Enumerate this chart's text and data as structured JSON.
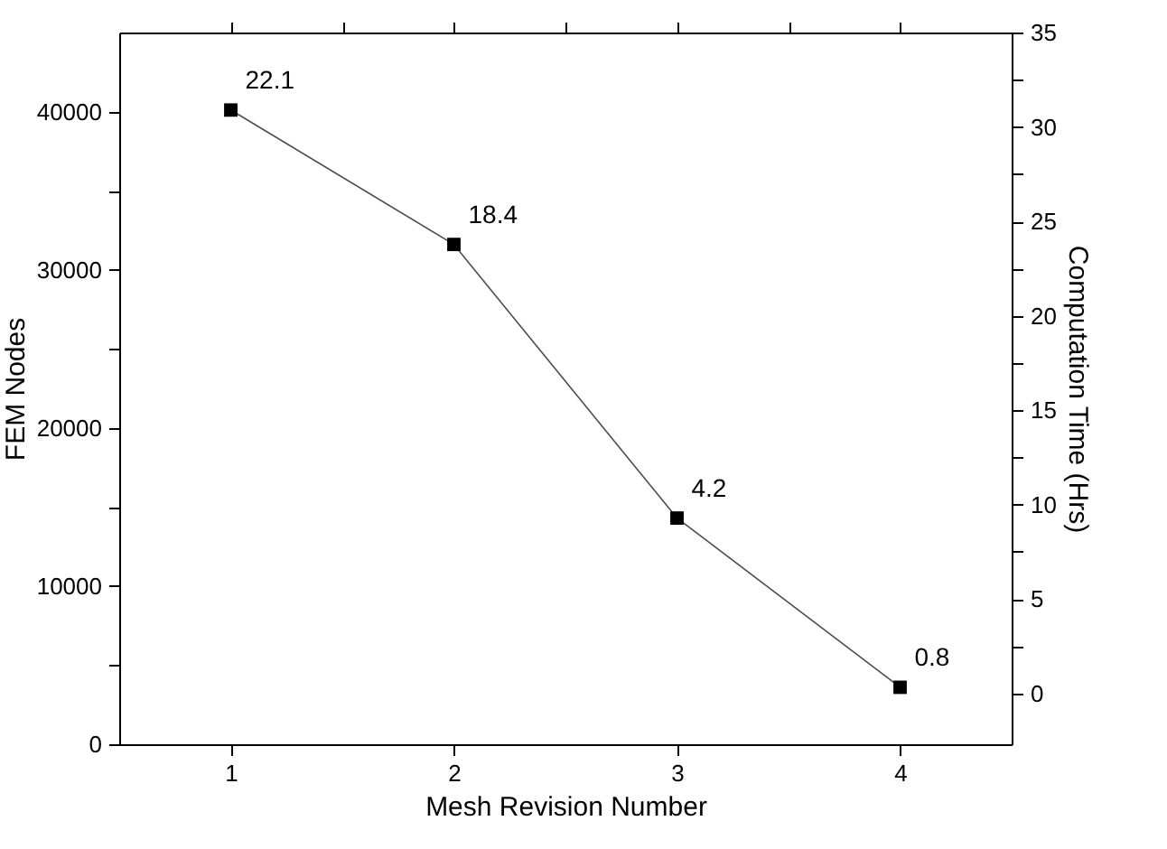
{
  "chart_data": {
    "type": "line",
    "xlabel": "Mesh Revision Number",
    "ylabel": "FEM Nodes",
    "y2label": "Computation Time (Hrs)",
    "x": [
      1,
      2,
      3,
      4
    ],
    "series": [
      {
        "color": "#000000",
        "values": [
          40100,
          31600,
          14300,
          3600
        ]
      }
    ],
    "annotations": [
      {
        "text": "22.1",
        "x": 1,
        "y": 40100
      },
      {
        "text": "18.4",
        "x": 2,
        "y": 31600
      },
      {
        "text": "4.2",
        "x": 3,
        "y": 14300
      },
      {
        "text": "0.8",
        "x": 4,
        "y": 3600
      }
    ],
    "xlim": [
      0.5,
      4.5
    ],
    "xticks": [
      1,
      {
        "value": 1.5,
        "label": null
      },
      2,
      {
        "value": 2.5,
        "label": null
      },
      3,
      {
        "value": 3.5,
        "label": null
      },
      4
    ],
    "ylim": [
      0,
      45000
    ],
    "yticks": [
      0,
      {
        "value": 5000,
        "label": null
      },
      10000,
      {
        "value": 15000,
        "label": null
      },
      20000,
      {
        "value": 25000,
        "label": null
      },
      30000,
      {
        "value": 35000,
        "label": null
      },
      40000
    ],
    "y2lim": [
      -2.7,
      35
    ],
    "y2ticks": [
      0,
      {
        "value": 2.5,
        "label": null
      },
      5,
      {
        "value": 7.5,
        "label": null
      },
      10,
      {
        "value": 12.5,
        "label": null
      },
      15,
      {
        "value": 17.5,
        "label": null
      },
      20,
      {
        "value": 22.5,
        "label": null
      },
      25,
      {
        "value": 27.5,
        "label": null
      },
      30,
      {
        "value": 32.5,
        "label": null
      },
      35
    ],
    "marker": "square",
    "line_style": "solid",
    "grid": false
  }
}
